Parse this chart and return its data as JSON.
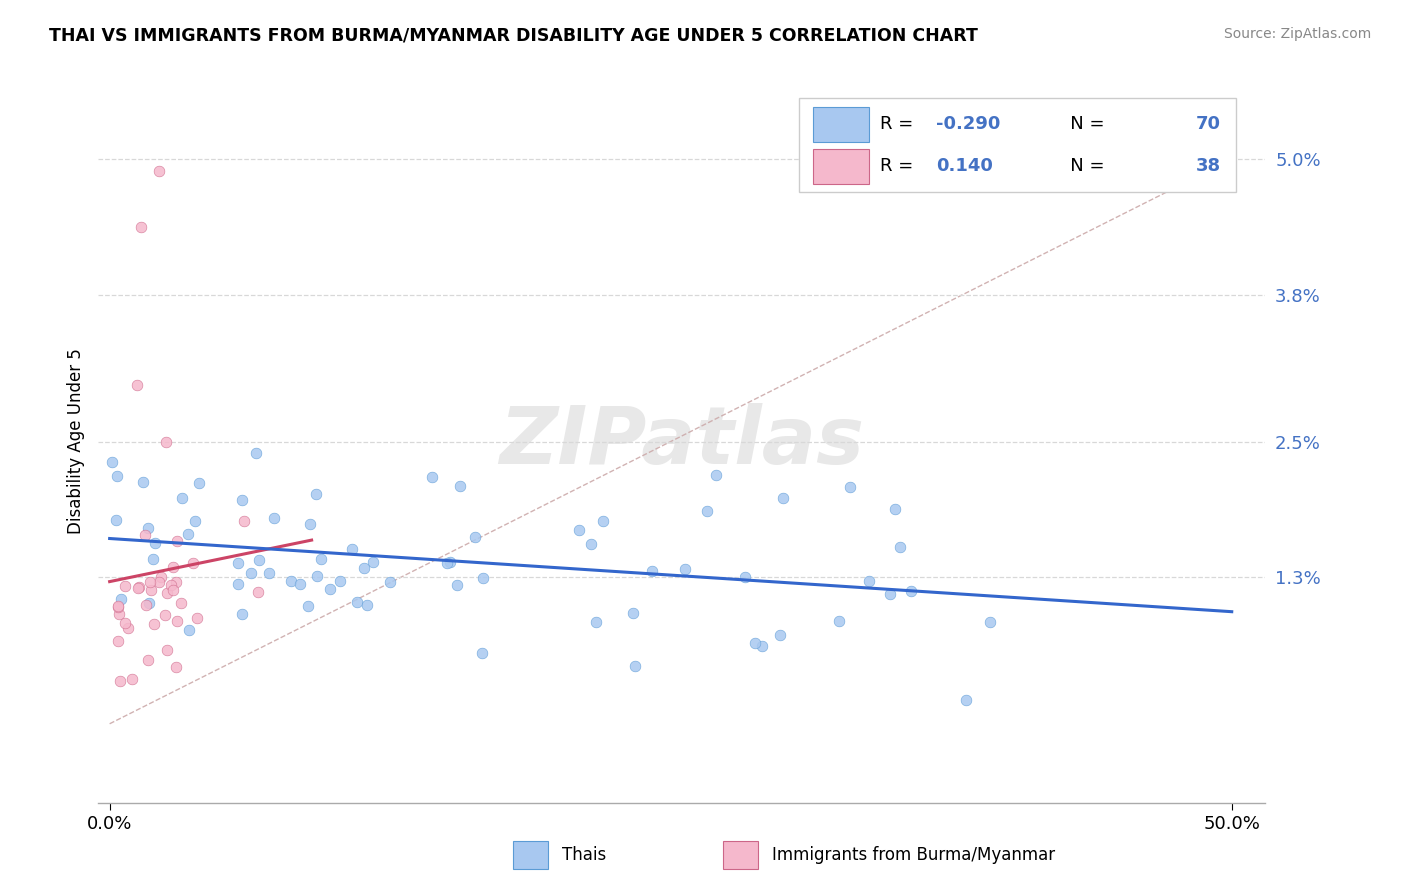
{
  "title": "THAI VS IMMIGRANTS FROM BURMA/MYANMAR DISABILITY AGE UNDER 5 CORRELATION CHART",
  "source": "Source: ZipAtlas.com",
  "ylabel": "Disability Age Under 5",
  "color_thai": "#a8c8f0",
  "color_thai_edge": "#5b9bd5",
  "color_burma": "#f5b8cc",
  "color_burma_edge": "#cc6688",
  "trendline_thai": "#3366cc",
  "trendline_burma": "#cc4466",
  "trendline_ref_color": "#ccaaaa",
  "trendline_ref_style": "--",
  "grid_color": "#d8d8d8",
  "ytick_color": "#4472c4",
  "ytick_vals": [
    0.013,
    0.025,
    0.038,
    0.05
  ],
  "ytick_labels": [
    "1.3%",
    "2.5%",
    "3.8%",
    "5.0%"
  ],
  "xlim_min": -0.005,
  "xlim_max": 0.515,
  "ylim_min": -0.007,
  "ylim_max": 0.057,
  "watermark": "ZIPatlas",
  "legend_R1": "-0.290",
  "legend_N1": "70",
  "legend_R2": "0.140",
  "legend_N2": "38",
  "scatter_size": 60,
  "seed": 12
}
